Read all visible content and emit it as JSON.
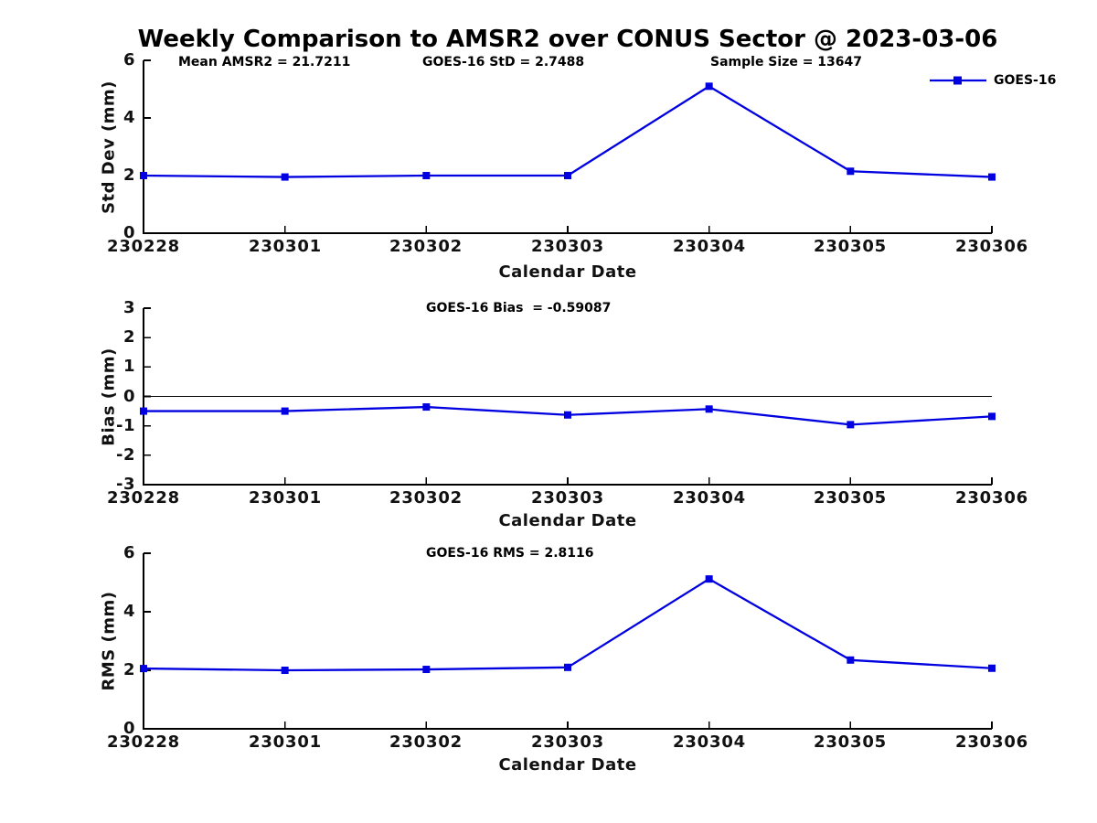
{
  "title": "Weekly Comparison to AMSR2 over CONUS Sector @ 2023-03-06",
  "legend": {
    "label": "GOES-16"
  },
  "colors": {
    "line": "#0000e0",
    "marker": "#0000e0",
    "axis": "#000000",
    "text": "#111111",
    "zero_line": "#000000"
  },
  "chart_data": [
    {
      "type": "line",
      "ylabel": "Std Dev (mm)",
      "xlabel": "Calendar Date",
      "categories": [
        "230228",
        "230301",
        "230302",
        "230303",
        "230304",
        "230305",
        "230306"
      ],
      "series": [
        {
          "name": "GOES-16",
          "values": [
            2.0,
            1.95,
            2.0,
            2.0,
            5.1,
            2.15,
            1.95
          ]
        }
      ],
      "ylim": [
        0,
        6
      ],
      "yticks": [
        0,
        2,
        4,
        6
      ],
      "grid": false,
      "legend_position": "top-right-outside",
      "annotations": [
        "Mean AMSR2 = 21.7211",
        "GOES-16 StD = 2.7488",
        "Sample Size = 13647"
      ]
    },
    {
      "type": "line",
      "ylabel": "Bias (mm)",
      "xlabel": "Calendar Date",
      "categories": [
        "230228",
        "230301",
        "230302",
        "230303",
        "230304",
        "230305",
        "230306"
      ],
      "series": [
        {
          "name": "GOES-16",
          "values": [
            -0.5,
            -0.5,
            -0.36,
            -0.63,
            -0.43,
            -0.96,
            -0.68
          ]
        }
      ],
      "ylim": [
        -3,
        3
      ],
      "yticks": [
        3,
        2,
        1,
        0,
        -1,
        -2,
        -3
      ],
      "grid": false,
      "zero_line": true,
      "annotations": [
        "GOES-16 Bias  = -0.59087"
      ]
    },
    {
      "type": "line",
      "ylabel": "RMS (mm)",
      "xlabel": "Calendar Date",
      "categories": [
        "230228",
        "230301",
        "230302",
        "230303",
        "230304",
        "230305",
        "230306"
      ],
      "series": [
        {
          "name": "GOES-16",
          "values": [
            2.06,
            2.0,
            2.03,
            2.1,
            5.12,
            2.35,
            2.07
          ]
        }
      ],
      "ylim": [
        0,
        6
      ],
      "yticks": [
        0,
        2,
        4,
        6
      ],
      "grid": false,
      "annotations": [
        "GOES-16 RMS = 2.8116"
      ]
    }
  ]
}
